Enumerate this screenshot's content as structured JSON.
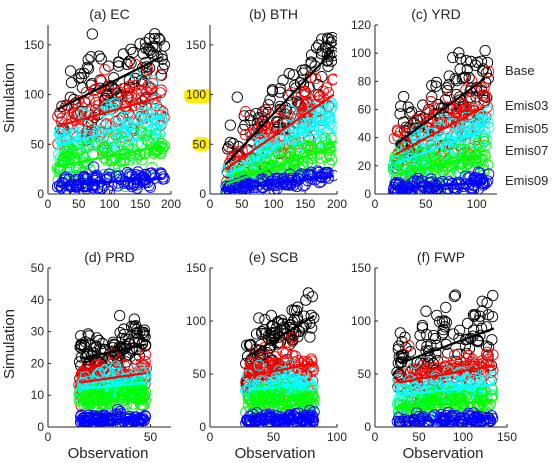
{
  "figure": {
    "y_label": "Simulation",
    "x_label": "Observation",
    "series_labels": [
      "Base",
      "Emis03",
      "Emis05",
      "Emis07",
      "Emis09"
    ],
    "series_colors": [
      "#000000",
      "#ff0000",
      "#00ffff",
      "#00ff00",
      "#0000ff"
    ],
    "marker": "open-circle",
    "highlight_color": "#ffee00"
  },
  "chart_data": [
    {
      "type": "scatter",
      "title": "(a) EC",
      "xlim": [
        0,
        200
      ],
      "ylim": [
        0,
        170
      ],
      "xticks": [
        0,
        50,
        100,
        150,
        200
      ],
      "yticks": [
        0,
        50,
        100,
        150
      ],
      "obs_range": [
        15,
        190
      ],
      "series": [
        {
          "name": "Base",
          "center": [
            0,
            55
          ],
          "spread": 22,
          "fit": [
            [
              15,
              85
            ],
            [
              185,
              138
            ]
          ],
          "max": 162
        },
        {
          "name": "Emis03",
          "center": [
            0,
            42
          ],
          "spread": 17,
          "fit": [
            [
              15,
              68
            ],
            [
              185,
              98
            ]
          ]
        },
        {
          "name": "Emis05",
          "center": [
            0,
            30
          ],
          "spread": 13,
          "fit": [
            [
              15,
              48
            ],
            [
              185,
              78
            ]
          ]
        },
        {
          "name": "Emis07",
          "center": [
            0,
            18
          ],
          "spread": 10,
          "fit": [
            [
              15,
              28
            ],
            [
              185,
              48
            ]
          ]
        },
        {
          "name": "Emis09",
          "center": [
            0,
            6
          ],
          "spread": 5,
          "fit": [
            [
              15,
              8
            ],
            [
              185,
              16
            ]
          ]
        }
      ]
    },
    {
      "type": "scatter",
      "title": "(b) BTH",
      "xlim": [
        0,
        200
      ],
      "ylim": [
        0,
        170
      ],
      "xticks": [
        0,
        50,
        100,
        150,
        200
      ],
      "yticks": [
        0,
        50,
        100,
        150
      ],
      "obs_range": [
        25,
        195
      ],
      "series": [
        {
          "name": "Base",
          "center": [
            0,
            60
          ],
          "spread": 18,
          "fit": [
            [
              25,
              30
            ],
            [
              195,
              145
            ]
          ],
          "max": 158
        },
        {
          "name": "Emis03",
          "center": [
            0,
            45
          ],
          "spread": 14,
          "fit": [
            [
              25,
              25
            ],
            [
              195,
              100
            ]
          ]
        },
        {
          "name": "Emis05",
          "center": [
            0,
            32
          ],
          "spread": 11,
          "fit": [
            [
              25,
              18
            ],
            [
              195,
              80
            ]
          ]
        },
        {
          "name": "Emis07",
          "center": [
            0,
            20
          ],
          "spread": 8,
          "fit": [
            [
              25,
              10
            ],
            [
              195,
              48
            ]
          ]
        },
        {
          "name": "Emis09",
          "center": [
            0,
            7
          ],
          "spread": 4,
          "fit": [
            [
              25,
              4
            ],
            [
              195,
              18
            ]
          ]
        }
      ]
    },
    {
      "type": "scatter",
      "title": "(c) YRD",
      "xlim": [
        0,
        120
      ],
      "ylim": [
        0,
        120
      ],
      "xticks": [
        0,
        50,
        100
      ],
      "yticks": [
        0,
        20,
        40,
        60,
        80,
        100,
        120
      ],
      "obs_range": [
        18,
        112
      ],
      "series": [
        {
          "name": "Base",
          "center": [
            0,
            58
          ],
          "spread": 14,
          "fit": [
            [
              20,
              35
            ],
            [
              108,
              82
            ]
          ],
          "max": 110
        },
        {
          "name": "Emis03",
          "center": [
            0,
            45
          ],
          "spread": 11,
          "fit": [
            [
              20,
              28
            ],
            [
              108,
              62
            ]
          ]
        },
        {
          "name": "Emis05",
          "center": [
            0,
            32
          ],
          "spread": 9,
          "fit": [
            [
              20,
              22
            ],
            [
              108,
              45
            ]
          ]
        },
        {
          "name": "Emis07",
          "center": [
            0,
            21
          ],
          "spread": 7,
          "fit": [
            [
              20,
              14
            ],
            [
              108,
              28
            ]
          ]
        },
        {
          "name": "Emis09",
          "center": [
            0,
            6
          ],
          "spread": 3,
          "fit": [
            [
              20,
              4
            ],
            [
              108,
              8
            ]
          ]
        }
      ]
    },
    {
      "type": "scatter",
      "title": "(d) PRD",
      "xlim": [
        0,
        60
      ],
      "ylim": [
        0,
        50
      ],
      "xticks": [
        0,
        50
      ],
      "yticks": [
        0,
        10,
        20,
        30,
        40,
        50
      ],
      "obs_range": [
        15,
        48
      ],
      "series": [
        {
          "name": "Base",
          "center": [
            0,
            25
          ],
          "spread": 4,
          "fit": [
            [
              16,
              21.5
            ],
            [
              48,
              26
            ]
          ],
          "max": 37
        },
        {
          "name": "Emis03",
          "center": [
            0,
            17
          ],
          "spread": 3,
          "fit": [
            [
              16,
              14
            ],
            [
              48,
              17
            ]
          ]
        },
        {
          "name": "Emis05",
          "center": [
            0,
            12
          ],
          "spread": 2.5,
          "fit": [
            [
              16,
              12
            ],
            [
              48,
              14
            ]
          ]
        },
        {
          "name": "Emis07",
          "center": [
            0,
            8
          ],
          "spread": 2,
          "fit": [
            [
              16,
              8
            ],
            [
              48,
              9
            ]
          ]
        },
        {
          "name": "Emis09",
          "center": [
            0,
            2.5
          ],
          "spread": 1,
          "fit": [
            [
              16,
              2
            ],
            [
              48,
              2.5
            ]
          ]
        }
      ]
    },
    {
      "type": "scatter",
      "title": "(e) SCB",
      "xlim": [
        0,
        100
      ],
      "ylim": [
        0,
        150
      ],
      "xticks": [
        0,
        50,
        100
      ],
      "yticks": [
        0,
        50,
        100,
        150
      ],
      "obs_range": [
        28,
        82
      ],
      "series": [
        {
          "name": "Base",
          "center": [
            0,
            85
          ],
          "spread": 14,
          "fit": [
            [
              30,
              67
            ],
            [
              82,
              105
            ]
          ],
          "max": 130
        },
        {
          "name": "Emis03",
          "center": [
            0,
            58
          ],
          "spread": 10,
          "fit": [
            [
              30,
              48
            ],
            [
              82,
              60
            ]
          ]
        },
        {
          "name": "Emis05",
          "center": [
            0,
            40
          ],
          "spread": 8,
          "fit": [
            [
              30,
              35
            ],
            [
              82,
              42
            ]
          ]
        },
        {
          "name": "Emis07",
          "center": [
            0,
            25
          ],
          "spread": 6,
          "fit": [
            [
              30,
              22
            ],
            [
              82,
              26
            ]
          ]
        },
        {
          "name": "Emis09",
          "center": [
            0,
            8
          ],
          "spread": 3,
          "fit": [
            [
              30,
              6
            ],
            [
              82,
              8
            ]
          ]
        }
      ]
    },
    {
      "type": "scatter",
      "title": "(f) FWP",
      "xlim": [
        0,
        150
      ],
      "ylim": [
        0,
        150
      ],
      "xticks": [
        0,
        50,
        100,
        150
      ],
      "yticks": [
        0,
        50,
        100,
        150
      ],
      "obs_range": [
        25,
        135
      ],
      "series": [
        {
          "name": "Base",
          "center": [
            0,
            70
          ],
          "spread": 16,
          "fit": [
            [
              28,
              60
            ],
            [
              135,
              93
            ]
          ],
          "max": 130
        },
        {
          "name": "Emis03",
          "center": [
            0,
            48
          ],
          "spread": 10,
          "fit": [
            [
              28,
              42
            ],
            [
              135,
              58
            ]
          ]
        },
        {
          "name": "Emis05",
          "center": [
            0,
            34
          ],
          "spread": 8,
          "fit": [
            [
              28,
              30
            ],
            [
              135,
              40
            ]
          ]
        },
        {
          "name": "Emis07",
          "center": [
            0,
            22
          ],
          "spread": 6,
          "fit": [
            [
              28,
              18
            ],
            [
              135,
              25
            ]
          ]
        },
        {
          "name": "Emis09",
          "center": [
            0,
            6
          ],
          "spread": 3,
          "fit": [
            [
              28,
              5
            ],
            [
              135,
              8
            ]
          ]
        }
      ]
    }
  ]
}
